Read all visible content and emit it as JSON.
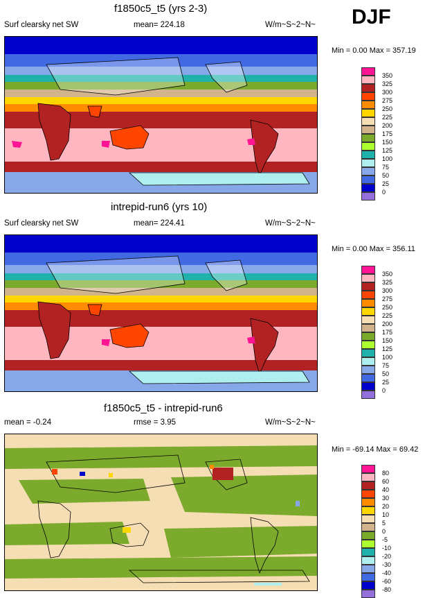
{
  "season": "DJF",
  "panels": [
    {
      "title": "f1850c5_t5 (yrs 2-3)",
      "left_label": "Surf clearsky net SW",
      "center_label": "mean= 224.18",
      "right_label": "W/m~S~2~N~",
      "min_max": "Min =   0.00 Max = 357.19"
    },
    {
      "title": "intrepid-run6 (yrs 10)",
      "left_label": "Surf clearsky net SW",
      "center_label": "mean= 224.41",
      "right_label": "W/m~S~2~N~",
      "min_max": "Min =   0.00 Max = 356.11"
    },
    {
      "title": "f1850c5_t5 - intrepid-run6",
      "left_label": "mean =  -0.24",
      "center_label": "rmse =   3.95",
      "right_label": "W/m~S~2~N~",
      "min_max": "Min = -69.14 Max =  69.42"
    }
  ],
  "colorbars": {
    "absolute": {
      "labels": [
        "350",
        "325",
        "300",
        "275",
        "250",
        "225",
        "200",
        "175",
        "150",
        "125",
        "100",
        "75",
        "50",
        "25",
        "0"
      ],
      "colors": [
        "#ff1493",
        "#ffb6c1",
        "#b22222",
        "#ff4500",
        "#ff8c00",
        "#ffd700",
        "#f5deb3",
        "#d2b48c",
        "#7caa2d",
        "#adff2f",
        "#20b2aa",
        "#afeeee",
        "#87a8e8",
        "#4169e1",
        "#0000cd",
        "#9370db"
      ]
    },
    "difference": {
      "labels": [
        "80",
        "60",
        "40",
        "30",
        "20",
        "10",
        "5",
        "0",
        "-5",
        "-10",
        "-20",
        "-30",
        "-40",
        "-60",
        "-80"
      ],
      "colors": [
        "#ff1493",
        "#ffb6c1",
        "#b22222",
        "#ff4500",
        "#ff8c00",
        "#ffd700",
        "#f5deb3",
        "#d2b48c",
        "#7caa2d",
        "#adff2f",
        "#20b2aa",
        "#afeeee",
        "#87a8e8",
        "#4169e1",
        "#0000cd",
        "#9370db"
      ]
    }
  },
  "chart_data": [
    {
      "type": "heatmap",
      "title": "f1850c5_t5 (yrs 2-3)",
      "variable": "Surf clearsky net SW",
      "units": "W/m~S~2~N~",
      "mean": 224.18,
      "min": 0.0,
      "max": 357.19,
      "levels": [
        0,
        25,
        50,
        75,
        100,
        125,
        150,
        175,
        200,
        225,
        250,
        275,
        300,
        325,
        350
      ],
      "lat_band_values": [
        0,
        25,
        75,
        125,
        165,
        210,
        265,
        305,
        330,
        335,
        310,
        275,
        70
      ]
    },
    {
      "type": "heatmap",
      "title": "intrepid-run6 (yrs 10)",
      "variable": "Surf clearsky net SW",
      "units": "W/m~S~2~N~",
      "mean": 224.41,
      "min": 0.0,
      "max": 356.11,
      "levels": [
        0,
        25,
        50,
        75,
        100,
        125,
        150,
        175,
        200,
        225,
        250,
        275,
        300,
        325,
        350
      ],
      "lat_band_values": [
        0,
        25,
        75,
        125,
        165,
        210,
        265,
        305,
        330,
        335,
        310,
        275,
        70
      ]
    },
    {
      "type": "heatmap",
      "title": "f1850c5_t5 - intrepid-run6",
      "units": "W/m~S~2~N~",
      "mean": -0.24,
      "rmse": 3.95,
      "min": -69.14,
      "max": 69.42,
      "levels": [
        -80,
        -60,
        -40,
        -30,
        -20,
        -10,
        -5,
        0,
        5,
        10,
        20,
        30,
        40,
        60,
        80
      ]
    }
  ]
}
